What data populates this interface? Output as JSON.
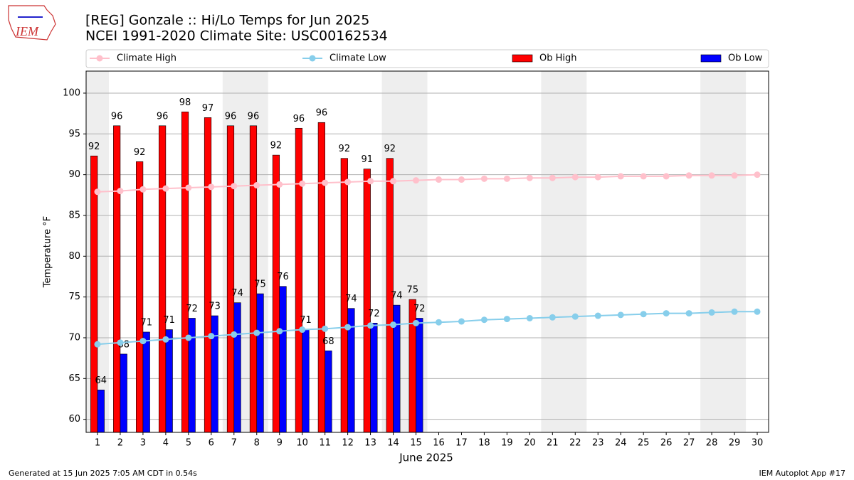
{
  "logo_text": "IEM",
  "footer_left": "Generated at 15 Jun 2025 7:05 AM CDT in 0.54s",
  "footer_right": "IEM Autoplot App #17",
  "chart_data": {
    "type": "bar",
    "title": "[REG] Gonzale :: Hi/Lo Temps for Jun 2025",
    "subtitle": "NCEI 1991-2020 Climate Site: USC00162534",
    "xlabel": "June 2025",
    "ylabel": "Temperature °F",
    "x": [
      1,
      2,
      3,
      4,
      5,
      6,
      7,
      8,
      9,
      10,
      11,
      12,
      13,
      14,
      15,
      16,
      17,
      18,
      19,
      20,
      21,
      22,
      23,
      24,
      25,
      26,
      27,
      28,
      29,
      30
    ],
    "xlim": [
      0.5,
      30.5
    ],
    "ylim": [
      58.4,
      102.7
    ],
    "xticks": [
      1,
      2,
      3,
      4,
      5,
      6,
      7,
      8,
      9,
      10,
      11,
      12,
      13,
      14,
      15,
      16,
      17,
      18,
      19,
      20,
      21,
      22,
      23,
      24,
      25,
      26,
      27,
      28,
      29,
      30
    ],
    "yticks": [
      60,
      65,
      70,
      75,
      80,
      85,
      90,
      95,
      100
    ],
    "grid": true,
    "legend": "top",
    "shaded_ranges": [
      [
        0.5,
        1.5
      ],
      [
        6.5,
        8.5
      ],
      [
        13.5,
        15.5
      ],
      [
        20.5,
        22.5
      ],
      [
        27.5,
        29.5
      ]
    ],
    "series": [
      {
        "name": "Climate High",
        "type": "line",
        "color": "#ffc0cb",
        "values": [
          87.9,
          88.0,
          88.2,
          88.3,
          88.4,
          88.5,
          88.6,
          88.7,
          88.8,
          88.9,
          89.0,
          89.1,
          89.2,
          89.2,
          89.3,
          89.4,
          89.4,
          89.5,
          89.5,
          89.6,
          89.6,
          89.7,
          89.7,
          89.8,
          89.8,
          89.8,
          89.9,
          89.9,
          89.9,
          90.0
        ]
      },
      {
        "name": "Climate Low",
        "type": "line",
        "color": "#87ceeb",
        "values": [
          69.2,
          69.4,
          69.6,
          69.8,
          70.0,
          70.2,
          70.4,
          70.6,
          70.8,
          71.0,
          71.1,
          71.3,
          71.5,
          71.6,
          71.8,
          71.9,
          72.0,
          72.2,
          72.3,
          72.4,
          72.5,
          72.6,
          72.7,
          72.8,
          72.9,
          73.0,
          73.0,
          73.1,
          73.2,
          73.2
        ]
      },
      {
        "name": "Ob High",
        "type": "bar",
        "color": "#ff0000",
        "values": [
          92.3,
          96.0,
          91.6,
          96.0,
          97.7,
          97.0,
          96.0,
          96.0,
          92.4,
          95.7,
          96.4,
          92.0,
          90.7,
          92.0,
          74.7,
          null,
          null,
          null,
          null,
          null,
          null,
          null,
          null,
          null,
          null,
          null,
          null,
          null,
          null,
          null
        ],
        "value_labels": [
          "92",
          "96",
          "92",
          "96",
          "98",
          "97",
          "96",
          "96",
          "92",
          "96",
          "96",
          "92",
          "91",
          "92",
          "75",
          null,
          null,
          null,
          null,
          null,
          null,
          null,
          null,
          null,
          null,
          null,
          null,
          null,
          null,
          null
        ]
      },
      {
        "name": "Ob Low",
        "type": "bar",
        "color": "#0000ff",
        "values": [
          63.6,
          68.0,
          70.7,
          71.0,
          72.4,
          72.7,
          74.3,
          75.4,
          76.3,
          71.0,
          68.4,
          73.6,
          71.8,
          74.0,
          72.4,
          null,
          null,
          null,
          null,
          null,
          null,
          null,
          null,
          null,
          null,
          null,
          null,
          null,
          null,
          null
        ],
        "value_labels": [
          "64",
          "68",
          "71",
          "71",
          "72",
          "73",
          "74",
          "75",
          "76",
          "71",
          "68",
          "74",
          "72",
          "74",
          "72",
          null,
          null,
          null,
          null,
          null,
          null,
          null,
          null,
          null,
          null,
          null,
          null,
          null,
          null,
          null
        ]
      }
    ]
  }
}
